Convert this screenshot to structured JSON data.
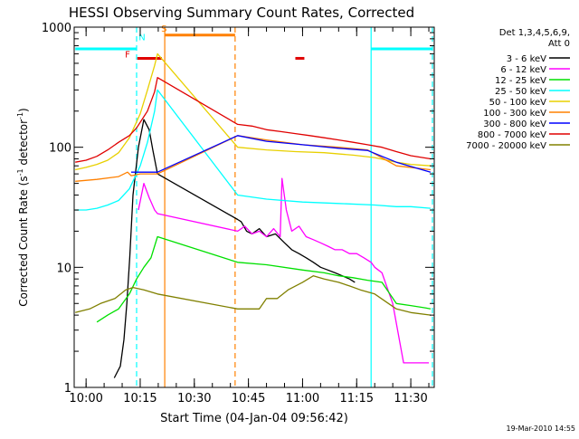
{
  "chart_data": {
    "type": "line",
    "title": "HESSI Observing Summary Count Rates, Corrected",
    "xlabel": "Start Time (04-Jan-04 09:56:42)",
    "ylabel_main": "Corrected Count Rate (s",
    "ylabel_sup1": "-1",
    "ylabel_mid": " detector",
    "ylabel_sup2": "-1",
    "ylabel_end": ")",
    "y_scale": "log",
    "ylim": [
      1,
      1000
    ],
    "xlim_minutes": [
      -3.3,
      37.8
    ],
    "x_ticks": [
      {
        "t": 0,
        "label": "10:00"
      },
      {
        "t": 15,
        "label": "10:15"
      },
      {
        "t": 30,
        "label": "10:30"
      },
      {
        "t": 45,
        "label": "10:45"
      },
      {
        "t": 60,
        "label": "11:00"
      },
      {
        "t": 75,
        "label": "11:15"
      },
      {
        "t": 90,
        "label": "11:30"
      }
    ],
    "x_minor_step_minutes": 5,
    "y_ticks": [
      {
        "v": 1,
        "label": "1"
      },
      {
        "v": 10,
        "label": "10"
      },
      {
        "v": 100,
        "label": "100"
      },
      {
        "v": 1000,
        "label": "1000"
      }
    ],
    "x_range_minutes": [
      -3.3,
      96.5
    ],
    "legend_header": [
      "Det 1,3,4,5,6,9,",
      "Att 0"
    ],
    "legend_position": "right",
    "timestamp": "19-Mar-2010 14:55",
    "series": [
      {
        "name": "3 - 6 keV",
        "color": "#000000",
        "x": [
          7.8,
          9.5,
          10.5,
          11.3,
          12.1,
          13.0,
          14.5,
          16.0,
          17.5,
          18.5,
          19.8,
          42.0,
          43.0,
          44.5,
          46.0,
          48.0,
          50.0,
          52.5,
          55.0,
          57.0,
          59.0,
          61.0,
          63.0,
          65.0,
          67.0,
          69.0,
          71.0,
          73.0,
          74.5
        ],
        "y": [
          1.2,
          1.5,
          2.5,
          5.0,
          12,
          40,
          100,
          170,
          140,
          95,
          60,
          25,
          24,
          20,
          19,
          21,
          18,
          19,
          16,
          14,
          13,
          12,
          11,
          10,
          9.5,
          9.0,
          8.5,
          8.0,
          7.5
        ]
      },
      {
        "name": "6 - 12 keV",
        "color": "#ff00ff",
        "x": [
          14.5,
          16.0,
          17.5,
          19.0,
          19.8,
          42.0,
          44.0,
          46.0,
          48.0,
          50.0,
          52.0,
          53.8,
          54.3,
          55.5,
          57.0,
          59.0,
          61.0,
          63.0,
          65.0,
          67.0,
          69.0,
          71.0,
          73.0,
          75.0,
          77.0,
          79.0,
          80.0,
          81.0,
          82.0,
          85.0,
          88.0,
          90.0,
          92.0,
          95.0
        ],
        "y": [
          30,
          50,
          38,
          30,
          28,
          20,
          22,
          19,
          20,
          18,
          21,
          18,
          55,
          30,
          20,
          22,
          18,
          17,
          16,
          15,
          14,
          14,
          13,
          13,
          12,
          11,
          10,
          9.5,
          9,
          5,
          1.6,
          1.6,
          1.6,
          1.6
        ]
      },
      {
        "name": "12 - 25 keV",
        "color": "#00e000",
        "x": [
          3.0,
          6.0,
          9.0,
          12.0,
          14.0,
          16.0,
          18.0,
          19.8,
          42.0,
          50.0,
          60.0,
          66.0,
          70.0,
          74.0,
          78.0,
          82.0,
          86.0,
          90.0,
          94.0,
          95.5
        ],
        "y": [
          3.5,
          4.0,
          4.5,
          6.0,
          8.0,
          10,
          12,
          18,
          11,
          10.5,
          9.5,
          9.0,
          8.5,
          8.2,
          7.8,
          7.5,
          5.0,
          4.8,
          4.6,
          4.5
        ]
      },
      {
        "name": "25 - 50 keV",
        "color": "#00ffff",
        "x": [
          -3.0,
          0.0,
          3.0,
          6.0,
          9.0,
          12.0,
          15.0,
          17.0,
          19.0,
          19.8,
          42.0,
          50.0,
          60.0,
          70.0,
          80.0,
          86.0,
          90.0,
          95.5
        ],
        "y": [
          30,
          30,
          31,
          33,
          36,
          45,
          70,
          110,
          200,
          300,
          40,
          37,
          35,
          34,
          33,
          32,
          32,
          31
        ]
      },
      {
        "name": "50 - 100 keV",
        "color": "#e8d000",
        "x": [
          -3.0,
          0.0,
          3.0,
          6.0,
          9.0,
          12.0,
          15.0,
          17.0,
          19.0,
          19.8,
          42.0,
          50.0,
          58.0,
          66.0,
          74.0,
          80.0,
          86.0,
          90.0,
          95.5
        ],
        "y": [
          65,
          68,
          72,
          78,
          90,
          120,
          190,
          300,
          480,
          600,
          100,
          95,
          92,
          90,
          86,
          82,
          75,
          72,
          70
        ]
      },
      {
        "name": "100 - 300 keV",
        "color": "#ff8000",
        "x": [
          -3.0,
          3.0,
          9.0,
          11.5,
          12.5,
          15.0,
          19.8,
          42.0,
          50.0,
          60.0,
          70.0,
          78.0,
          86.0,
          95.5
        ],
        "y": [
          52,
          54,
          57,
          62,
          58,
          60,
          60,
          125,
          115,
          105,
          100,
          95,
          70,
          65
        ]
      },
      {
        "name": "300 - 800 keV",
        "color": "#0000ff",
        "x": [
          12.5,
          15.0,
          19.8,
          42.0,
          50.0,
          60.0,
          70.0,
          78.0,
          86.0,
          95.5
        ],
        "y": [
          62,
          62,
          62,
          125,
          112,
          105,
          98,
          94,
          75,
          62
        ]
      },
      {
        "name": "800 - 7000 keV",
        "color": "#e00000",
        "x": [
          -3.0,
          0.0,
          3.0,
          6.0,
          9.0,
          12.0,
          14.0,
          17.0,
          19.0,
          19.8,
          42.0,
          46.0,
          50.0,
          54.0,
          58.0,
          62.0,
          66.0,
          70.0,
          74.0,
          78.0,
          82.0,
          86.0,
          90.0,
          95.5
        ],
        "y": [
          75,
          78,
          84,
          95,
          110,
          125,
          145,
          200,
          290,
          380,
          155,
          150,
          140,
          135,
          130,
          125,
          120,
          115,
          110,
          105,
          100,
          92,
          85,
          80
        ]
      },
      {
        "name": "7000 - 20000 keV",
        "color": "#808000",
        "x": [
          -3.0,
          1.0,
          4.0,
          8.0,
          11.0,
          13.0,
          16.0,
          19.8,
          42.0,
          48.0,
          50.0,
          53.0,
          56.0,
          60.0,
          63.0,
          66.0,
          70.0,
          73.0,
          76.0,
          80.0,
          86.0,
          90.0,
          95.5
        ],
        "y": [
          4.2,
          4.5,
          5.0,
          5.5,
          6.5,
          6.8,
          6.5,
          6.0,
          4.5,
          4.5,
          5.5,
          5.5,
          6.5,
          7.5,
          8.5,
          8.0,
          7.5,
          7.0,
          6.5,
          6.0,
          4.5,
          4.2,
          4.0
        ]
      }
    ],
    "vlines": [
      {
        "t": 14.0,
        "color": "#00ffff",
        "style": "dashed"
      },
      {
        "t": 21.8,
        "color": "#ff8000",
        "style": "solid"
      },
      {
        "t": 41.3,
        "color": "#ff8000",
        "style": "dashed"
      },
      {
        "t": 79.0,
        "color": "#00ffff",
        "style": "solid"
      },
      {
        "t": 96.0,
        "color": "#00ffff",
        "style": "dashed"
      }
    ],
    "flags": [
      {
        "label": "N",
        "color": "#00ffff",
        "t0": -3.0,
        "t1": 14.0,
        "y": 660,
        "label_t": 15.5,
        "label_y": 780
      },
      {
        "label": "S",
        "color": "#ff8000",
        "t0": 21.8,
        "t1": 41.3,
        "y": 860,
        "label_t": 21.6,
        "label_y": 920
      },
      {
        "label": "",
        "color": "#00ffff",
        "t0": 79.0,
        "t1": 96.0,
        "y": 660,
        "label_t": 0,
        "label_y": 0
      },
      {
        "label": "F",
        "color": "#e00000",
        "t0": 14.2,
        "t1": 21.0,
        "y": 550,
        "label_t": 11.5,
        "label_y": 560
      },
      {
        "label": "",
        "color": "#e00000",
        "t0": 58.0,
        "t1": 60.5,
        "y": 550,
        "label_t": 0,
        "label_y": 0
      }
    ]
  }
}
